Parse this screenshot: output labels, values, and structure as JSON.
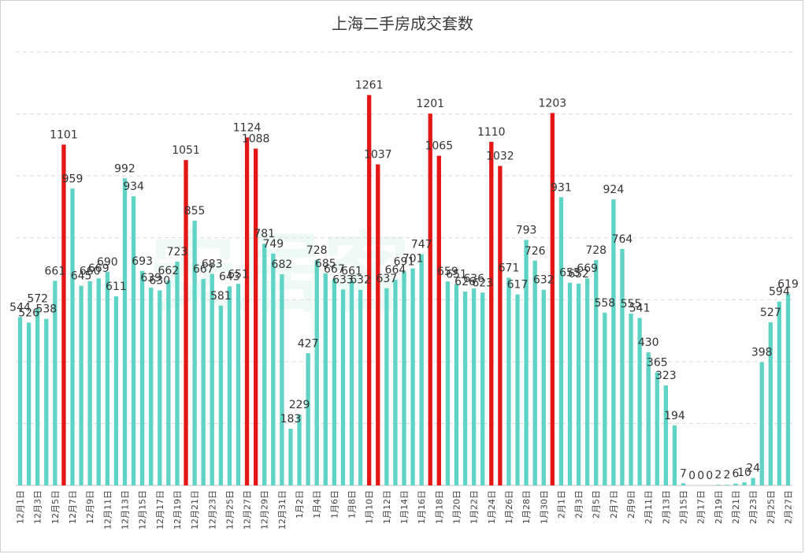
{
  "chart_data": {
    "type": "bar",
    "title": "上海二手房成交套数",
    "xlabel": "",
    "ylabel": "",
    "ylim": [
      0,
      1400
    ],
    "grid": true,
    "colors": {
      "normal": "#5fd3c4",
      "highlight": "#e41717"
    },
    "highlight_threshold": 1000,
    "categories": [
      "12月1日",
      "12月2日",
      "12月3日",
      "12月4日",
      "12月5日",
      "12月6日",
      "12月7日",
      "12月8日",
      "12月9日",
      "12月10日",
      "12月11日",
      "12月12日",
      "12月13日",
      "12月14日",
      "12月15日",
      "12月16日",
      "12月17日",
      "12月18日",
      "12月19日",
      "12月20日",
      "12月21日",
      "12月22日",
      "12月23日",
      "12月24日",
      "12月25日",
      "12月26日",
      "12月27日",
      "12月28日",
      "12月29日",
      "12月30日",
      "12月31日",
      "1月1日",
      "1月2日",
      "1月3日",
      "1月4日",
      "1月5日",
      "1月6日",
      "1月7日",
      "1月8日",
      "1月9日",
      "1月10日",
      "1月11日",
      "1月12日",
      "1月13日",
      "1月14日",
      "1月15日",
      "1月16日",
      "1月17日",
      "1月18日",
      "1月19日",
      "1月20日",
      "1月21日",
      "1月22日",
      "1月23日",
      "1月24日",
      "1月25日",
      "1月26日",
      "1月27日",
      "1月28日",
      "1月29日",
      "1月30日",
      "1月31日",
      "2月1日",
      "2月2日",
      "2月3日",
      "2月4日",
      "2月5日",
      "2月6日",
      "2月7日",
      "2月8日",
      "2月9日",
      "2月10日",
      "2月11日",
      "2月12日",
      "2月13日",
      "2月14日",
      "2月15日",
      "2月16日",
      "2月17日",
      "2月18日",
      "2月19日",
      "2月20日",
      "2月21日",
      "2月22日",
      "2月23日",
      "2月24日",
      "2月25日",
      "2月26日",
      "2月27日"
    ],
    "tick_labels": [
      "12月1日",
      "12月3日",
      "12月5日",
      "12月7日",
      "12月9日",
      "12月11日",
      "12月13日",
      "12月15日",
      "12月17日",
      "12月19日",
      "12月21日",
      "12月23日",
      "12月25日",
      "12月27日",
      "12月29日",
      "12月31日",
      "1月2日",
      "1月4日",
      "1月6日",
      "1月8日",
      "1月10日",
      "1月12日",
      "1月14日",
      "1月16日",
      "1月18日",
      "1月20日",
      "1月22日",
      "1月24日",
      "1月26日",
      "1月28日",
      "1月30日",
      "2月1日",
      "2月3日",
      "2月5日",
      "2月7日",
      "2月9日",
      "2月11日",
      "2月13日",
      "2月15日",
      "2月17日",
      "2月19日",
      "2月21日",
      "2月23日",
      "2月25日",
      "2月27日"
    ],
    "values": [
      544,
      526,
      572,
      538,
      661,
      1101,
      959,
      645,
      660,
      669,
      690,
      611,
      992,
      934,
      693,
      639,
      630,
      662,
      723,
      1051,
      855,
      667,
      683,
      581,
      643,
      651,
      1124,
      1088,
      781,
      749,
      682,
      183,
      229,
      427,
      728,
      685,
      667,
      633,
      661,
      632,
      1261,
      1037,
      637,
      664,
      691,
      701,
      747,
      1201,
      1065,
      659,
      651,
      626,
      636,
      623,
      1110,
      1032,
      671,
      617,
      793,
      726,
      632,
      1203,
      931,
      655,
      652,
      669,
      728,
      558,
      924,
      764,
      555,
      541,
      430,
      365,
      323,
      194,
      7,
      0,
      0,
      0,
      2,
      2,
      6,
      10,
      24,
      398,
      527,
      594,
      619
    ]
  }
}
